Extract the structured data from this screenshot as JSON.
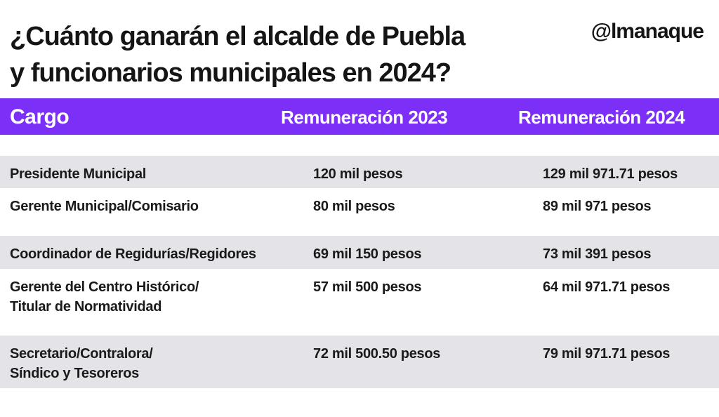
{
  "header": {
    "title": [
      "¿Cuánto ganarán el alcalde de Puebla",
      "y funcionarios municipales en 2024?"
    ],
    "logo": "@lmanaque"
  },
  "table": {
    "columns": [
      "Cargo",
      "Remuneración 2023",
      "Remuneración 2024"
    ],
    "rows": [
      {
        "cargo": [
          "Presidente Municipal"
        ],
        "r2023": "120 mil pesos",
        "r2024": "129 mil 971.71 pesos"
      },
      {
        "cargo": [
          "Gerente Municipal/Comisario"
        ],
        "r2023": "80 mil pesos",
        "r2024": "89 mil 971 pesos"
      },
      {
        "cargo": [
          "Coordinador de Regidurías/Regidores"
        ],
        "r2023": "69 mil 150 pesos",
        "r2024": "73 mil 391 pesos"
      },
      {
        "cargo": [
          "Gerente del Centro Histórico/",
          "Titular de Normatividad"
        ],
        "r2023": "57 mil 500 pesos",
        "r2024": "64 mil 971.71 pesos"
      },
      {
        "cargo": [
          "Secretario/Contralora/",
          "Síndico y Tesoreros"
        ],
        "r2023": "72 mil 500.50 pesos",
        "r2024": "79 mil 971.71 pesos"
      }
    ]
  }
}
